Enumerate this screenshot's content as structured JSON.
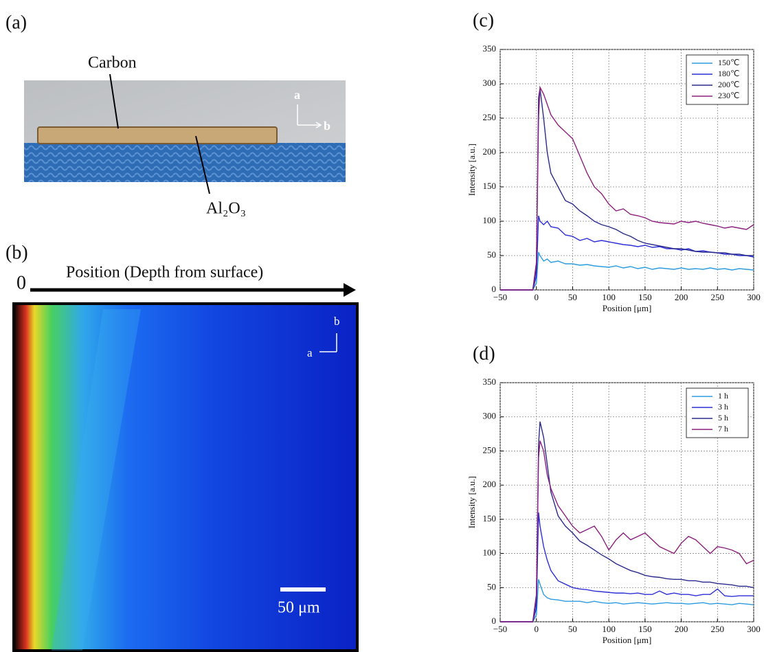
{
  "figure": {
    "panel_a": {
      "label": "(a)",
      "carbon": "Carbon",
      "substrate": "Al₂O₃",
      "axis_a": "a",
      "axis_b": "b"
    },
    "panel_b": {
      "label": "(b)",
      "origin": "0",
      "direction": "Position (Depth from surface)",
      "axis_b": "b",
      "axis_a": "a",
      "scale_bar": "50 μm"
    }
  },
  "chart_data": [
    {
      "type": "line",
      "title": "(c)",
      "x_label": "Position [μm]",
      "y_label": "Intensity [a.u.]",
      "x": [
        -50,
        -5,
        0,
        3,
        5,
        10,
        15,
        20,
        30,
        40,
        50,
        60,
        70,
        80,
        90,
        100,
        110,
        120,
        130,
        140,
        150,
        160,
        170,
        180,
        190,
        200,
        210,
        220,
        230,
        240,
        250,
        260,
        270,
        280,
        290,
        300
      ],
      "series": [
        {
          "name": "150℃",
          "color": "#2b9be0",
          "values": [
            0,
            0,
            10,
            55,
            50,
            42,
            45,
            40,
            42,
            38,
            38,
            36,
            37,
            35,
            34,
            33,
            35,
            32,
            34,
            31,
            33,
            30,
            32,
            31,
            30,
            32,
            30,
            31,
            30,
            32,
            30,
            31,
            29,
            31,
            30,
            29
          ]
        },
        {
          "name": "180℃",
          "color": "#2c2fd6",
          "values": [
            0,
            0,
            20,
            108,
            100,
            95,
            100,
            92,
            90,
            80,
            78,
            72,
            75,
            70,
            72,
            70,
            68,
            66,
            65,
            63,
            65,
            62,
            63,
            60,
            60,
            58,
            60,
            56,
            57,
            55,
            54,
            52,
            52,
            50,
            50,
            48
          ]
        },
        {
          "name": "200℃",
          "color": "#2a2a8c",
          "values": [
            0,
            0,
            30,
            280,
            293,
            250,
            200,
            170,
            150,
            130,
            125,
            115,
            108,
            100,
            95,
            92,
            88,
            82,
            78,
            72,
            68,
            66,
            64,
            62,
            60,
            60,
            58,
            56,
            55,
            55,
            54,
            54,
            52,
            52,
            50,
            50
          ]
        },
        {
          "name": "230℃",
          "color": "#8b1f7e",
          "values": [
            0,
            0,
            40,
            250,
            295,
            285,
            270,
            255,
            240,
            230,
            220,
            195,
            170,
            150,
            140,
            125,
            115,
            118,
            110,
            108,
            105,
            100,
            98,
            97,
            96,
            100,
            98,
            100,
            97,
            95,
            93,
            90,
            92,
            90,
            88,
            95
          ]
        }
      ],
      "xlim": [
        -50,
        300
      ],
      "xticks": [
        {
          "value": -50,
          "label": "−50"
        },
        0,
        50,
        100,
        150,
        200,
        250,
        300
      ],
      "ylim": [
        0,
        350
      ],
      "yticks": [
        0,
        50,
        100,
        150,
        200,
        250,
        300,
        350
      ],
      "grid": true,
      "legend": "upper-right"
    },
    {
      "type": "line",
      "title": "(d)",
      "x_label": "Position [μm]",
      "y_label": "Intensity [a.u.]",
      "x": [
        -50,
        -5,
        0,
        3,
        5,
        10,
        15,
        20,
        30,
        40,
        50,
        60,
        70,
        80,
        90,
        100,
        110,
        120,
        130,
        140,
        150,
        160,
        170,
        180,
        190,
        200,
        210,
        220,
        230,
        240,
        250,
        260,
        270,
        280,
        290,
        300
      ],
      "series": [
        {
          "name": "1 h",
          "color": "#2b9be0",
          "values": [
            0,
            0,
            10,
            62,
            55,
            40,
            35,
            33,
            32,
            30,
            30,
            30,
            28,
            30,
            28,
            27,
            28,
            26,
            27,
            28,
            27,
            26,
            27,
            28,
            27,
            27,
            26,
            27,
            28,
            26,
            27,
            26,
            25,
            27,
            26,
            25
          ]
        },
        {
          "name": "3 h",
          "color": "#2c2fd6",
          "values": [
            0,
            0,
            20,
            160,
            140,
            110,
            90,
            75,
            60,
            55,
            50,
            48,
            47,
            45,
            44,
            43,
            42,
            42,
            41,
            42,
            40,
            40,
            45,
            40,
            42,
            40,
            40,
            38,
            40,
            40,
            48,
            38,
            37,
            38,
            38,
            38
          ]
        },
        {
          "name": "5 h",
          "color": "#2a2a8c",
          "values": [
            0,
            0,
            30,
            260,
            293,
            270,
            230,
            190,
            155,
            140,
            130,
            118,
            112,
            105,
            98,
            92,
            85,
            80,
            75,
            72,
            68,
            66,
            65,
            63,
            62,
            62,
            60,
            60,
            58,
            58,
            56,
            55,
            54,
            52,
            52,
            50
          ]
        },
        {
          "name": "7 h",
          "color": "#8b1f7e",
          "values": [
            0,
            0,
            40,
            240,
            265,
            250,
            215,
            195,
            170,
            155,
            140,
            130,
            135,
            140,
            125,
            105,
            120,
            130,
            120,
            125,
            130,
            120,
            110,
            105,
            100,
            115,
            125,
            120,
            110,
            100,
            110,
            108,
            105,
            100,
            85,
            90
          ]
        }
      ],
      "xlim": [
        -50,
        300
      ],
      "xticks": [
        {
          "value": -50,
          "label": "−50"
        },
        0,
        50,
        100,
        150,
        200,
        250,
        300
      ],
      "ylim": [
        0,
        350
      ],
      "yticks": [
        0,
        50,
        100,
        150,
        200,
        250,
        300,
        350
      ],
      "grid": true,
      "legend": "upper-right"
    }
  ]
}
